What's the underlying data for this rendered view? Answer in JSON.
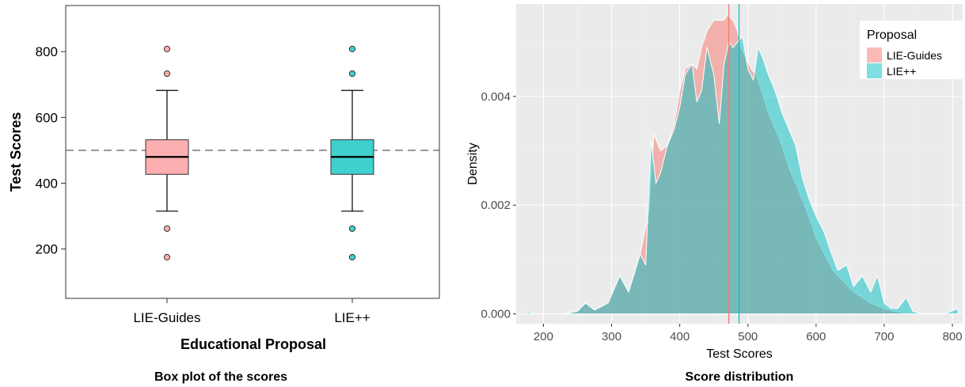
{
  "chart_data": [
    {
      "type": "box",
      "caption": "Box plot of the scores",
      "xlabel": "Educational Proposal",
      "ylabel": "Test Scores",
      "ylim": [
        50,
        940
      ],
      "yticks": [
        200,
        400,
        600,
        800
      ],
      "reference_line": 500,
      "categories": [
        "LIE-Guides",
        "LIE++"
      ],
      "colors": [
        "#fcaeb0",
        "#40d0cd"
      ],
      "boxes": [
        {
          "name": "LIE-Guides",
          "whisker_low": 315,
          "q1": 427,
          "median": 480,
          "q3": 532,
          "whisker_high": 682,
          "outliers": [
            175,
            262,
            733,
            808
          ]
        },
        {
          "name": "LIE++",
          "whisker_low": 315,
          "q1": 427,
          "median": 480,
          "q3": 532,
          "whisker_high": 682,
          "outliers": [
            175,
            262,
            733,
            808
          ]
        }
      ]
    },
    {
      "type": "area",
      "caption": "Score distribution",
      "xlabel": "Test Scores",
      "ylabel": "Density",
      "xlim": [
        160,
        815
      ],
      "ylim": [
        -0.00018,
        0.0057
      ],
      "xticks": [
        200,
        300,
        400,
        500,
        600,
        700,
        800
      ],
      "yticks": [
        0.0,
        0.002,
        0.004
      ],
      "ytick_labels": [
        "0.000",
        "0.002",
        "0.004"
      ],
      "grid": true,
      "legend": {
        "title": "Proposal",
        "position": "top-right"
      },
      "series": [
        {
          "name": "LIE-Guides",
          "color": "#f8766d",
          "mean": 472,
          "x": [
            230,
            250,
            262,
            275,
            295,
            312,
            325,
            342,
            355,
            362,
            372,
            382,
            392,
            400,
            408,
            418,
            425,
            432,
            440,
            450,
            458,
            465,
            470,
            478,
            485,
            490,
            497,
            505,
            512,
            520,
            530,
            540,
            550,
            560,
            570,
            580,
            592,
            600,
            612,
            625,
            640,
            655,
            668,
            680,
            690,
            700,
            710,
            725,
            740,
            760,
            775
          ],
          "y": [
            0,
            5e-05,
            0.0002,
            7e-05,
            0.0002,
            0.0007,
            0.0004,
            0.0011,
            0.0019,
            0.0033,
            0.003,
            0.0031,
            0.0035,
            0.0041,
            0.0045,
            0.0046,
            0.0045,
            0.0049,
            0.0052,
            0.0054,
            0.0054,
            0.0054,
            0.0055,
            0.0054,
            0.0052,
            0.0049,
            0.0047,
            0.0045,
            0.0044,
            0.0041,
            0.0037,
            0.0034,
            0.0031,
            0.0027,
            0.0024,
            0.0021,
            0.0017,
            0.0014,
            0.0011,
            0.0008,
            0.0006,
            0.0004,
            0.0003,
            0.0002,
            0.00015,
            0.0001,
            6e-05,
            3e-05,
            1e-05,
            5e-06,
            0
          ]
        },
        {
          "name": "LIE++",
          "color": "#00bfc4",
          "mean": 487,
          "x": [
            175,
            185,
            195,
            230,
            250,
            262,
            275,
            295,
            312,
            325,
            342,
            350,
            358,
            365,
            372,
            382,
            392,
            400,
            408,
            418,
            425,
            432,
            440,
            450,
            458,
            465,
            472,
            478,
            485,
            492,
            500,
            508,
            515,
            522,
            530,
            540,
            550,
            560,
            570,
            580,
            590,
            600,
            612,
            620,
            632,
            645,
            655,
            668,
            680,
            690,
            700,
            710,
            720,
            732,
            742,
            755,
            770,
            785,
            795,
            808
          ],
          "y": [
            4e-05,
            1e-05,
            0,
            0,
            5e-05,
            0.0002,
            7e-05,
            0.0002,
            0.0007,
            0.0004,
            0.0011,
            0.0009,
            0.0032,
            0.0024,
            0.0026,
            0.0031,
            0.0034,
            0.0038,
            0.0044,
            0.0046,
            0.0039,
            0.0041,
            0.0049,
            0.0044,
            0.0035,
            0.0046,
            0.005,
            0.0049,
            0.005,
            0.0051,
            0.0045,
            0.0043,
            0.0049,
            0.0047,
            0.0044,
            0.0041,
            0.0037,
            0.0034,
            0.0031,
            0.0025,
            0.0021,
            0.0018,
            0.0015,
            0.0012,
            0.0008,
            0.0009,
            0.0005,
            0.0007,
            0.0004,
            0.0007,
            0.0002,
            0.0001,
            0.0001,
            0.0003,
            5e-05,
            0,
            0,
            0,
            3e-05,
            0.0001
          ]
        }
      ]
    }
  ]
}
